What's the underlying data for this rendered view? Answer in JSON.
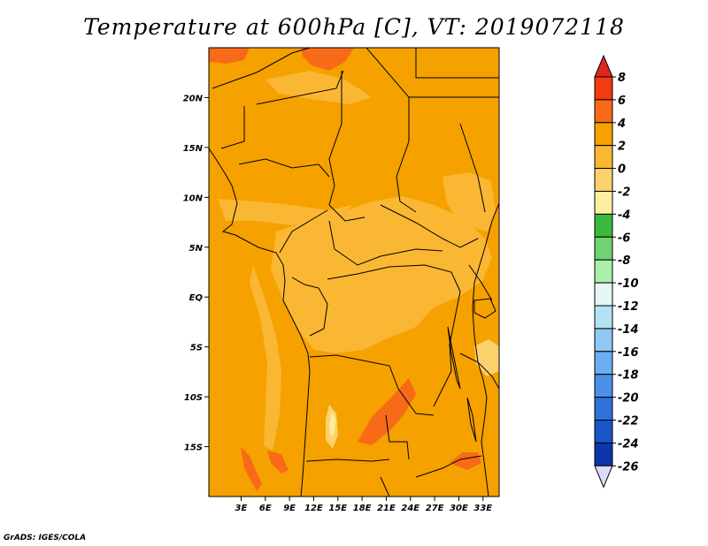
{
  "title": "Temperature at 600hPa [C], VT: 2019072118",
  "credit": "GrADS: IGES/COLA",
  "map": {
    "lon_range": [
      -1,
      35
    ],
    "lat_range": [
      -20,
      25
    ],
    "lat_ticks": [
      {
        "value": 20,
        "label": "20N"
      },
      {
        "value": 15,
        "label": "15N"
      },
      {
        "value": 10,
        "label": "10N"
      },
      {
        "value": 5,
        "label": "5N"
      },
      {
        "value": 0,
        "label": "EQ"
      },
      {
        "value": -5,
        "label": "5S"
      },
      {
        "value": -10,
        "label": "10S"
      },
      {
        "value": -15,
        "label": "15S"
      }
    ],
    "lon_ticks": [
      {
        "value": 3,
        "label": "3E"
      },
      {
        "value": 6,
        "label": "6E"
      },
      {
        "value": 9,
        "label": "9E"
      },
      {
        "value": 12,
        "label": "12E"
      },
      {
        "value": 15,
        "label": "15E"
      },
      {
        "value": 18,
        "label": "18E"
      },
      {
        "value": 21,
        "label": "21E"
      },
      {
        "value": 24,
        "label": "24E"
      },
      {
        "value": 27,
        "label": "27E"
      },
      {
        "value": 30,
        "label": "30E"
      },
      {
        "value": 33,
        "label": "33E"
      }
    ]
  },
  "colorbar": {
    "levels": [
      "8",
      "6",
      "4",
      "2",
      "0",
      "-2",
      "-4",
      "-6",
      "-8",
      "-10",
      "-12",
      "-14",
      "-16",
      "-18",
      "-20",
      "-22",
      "-24",
      "-26"
    ],
    "colors": [
      "#f03c10",
      "#f86a18",
      "#f5a100",
      "#fab733",
      "#fdd26c",
      "#fdeea0",
      "#3cb83c",
      "#6fd36f",
      "#aaf0aa",
      "#e6f5f5",
      "#b3e2f5",
      "#8fc8f2",
      "#6aadf0",
      "#4a90e6",
      "#2e72d9",
      "#1a55c8",
      "#0c36a8",
      "#08207a",
      "#e0e0ff"
    ],
    "top_color": "#e0281c",
    "bottom_color": "#dcdcfa"
  }
}
